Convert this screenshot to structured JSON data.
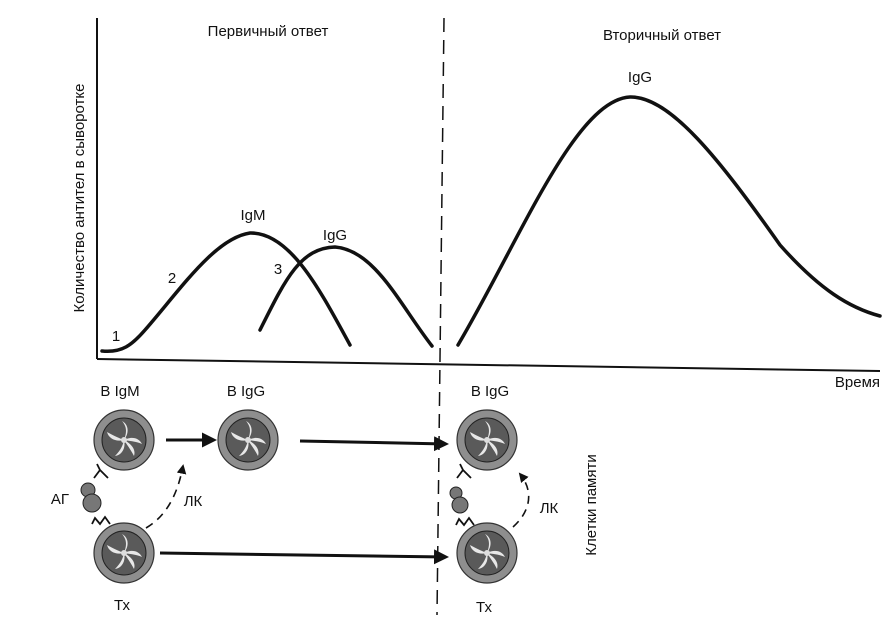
{
  "title_primary": "Первичный ответ",
  "title_secondary": "Вторичный ответ",
  "y_axis_label": "Количество антител в сыворотке",
  "x_axis_label": "Время",
  "curve_labels": {
    "igm_primary": "IgM",
    "igg_primary": "IgG",
    "igg_secondary": "IgG"
  },
  "phase_markers": [
    "1",
    "2",
    "3"
  ],
  "cell_labels": {
    "b_igm": "B IgM",
    "b_igg_primary": "B IgG",
    "b_igg_secondary": "B IgG",
    "th_primary": "Тх",
    "th_secondary": "Тх",
    "antigen": "АГ",
    "lymphokines_primary": "ЛК",
    "lymphokines_secondary": "ЛК",
    "memory_cells": "Клетки памяти"
  },
  "colors": {
    "ink": "#111111",
    "cell_fill": "#8e8e8e",
    "background": "#ffffff"
  }
}
